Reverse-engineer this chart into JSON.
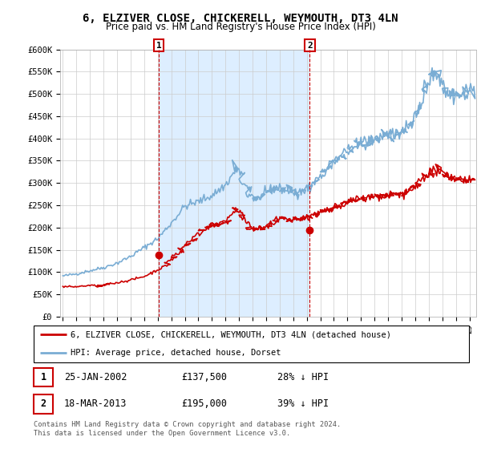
{
  "title": "6, ELZIVER CLOSE, CHICKERELL, WEYMOUTH, DT3 4LN",
  "subtitle": "Price paid vs. HM Land Registry's House Price Index (HPI)",
  "ylim": [
    0,
    600000
  ],
  "yticks": [
    0,
    50000,
    100000,
    150000,
    200000,
    250000,
    300000,
    350000,
    400000,
    450000,
    500000,
    550000,
    600000
  ],
  "ytick_labels": [
    "£0",
    "£50K",
    "£100K",
    "£150K",
    "£200K",
    "£250K",
    "£300K",
    "£350K",
    "£400K",
    "£450K",
    "£500K",
    "£550K",
    "£600K"
  ],
  "legend_red": "6, ELZIVER CLOSE, CHICKERELL, WEYMOUTH, DT3 4LN (detached house)",
  "legend_blue": "HPI: Average price, detached house, Dorset",
  "annotation1_date": "25-JAN-2002",
  "annotation1_price": "£137,500",
  "annotation1_hpi": "28% ↓ HPI",
  "annotation2_date": "18-MAR-2013",
  "annotation2_price": "£195,000",
  "annotation2_hpi": "39% ↓ HPI",
  "footer": "Contains HM Land Registry data © Crown copyright and database right 2024.\nThis data is licensed under the Open Government Licence v3.0.",
  "red_color": "#cc0000",
  "blue_color": "#7aadd4",
  "shade_color": "#ddeeff",
  "sale1_x": 2002.07,
  "sale1_y": 137500,
  "sale2_x": 2013.22,
  "sale2_y": 195000,
  "xmin": 1994.8,
  "xmax": 2025.5
}
